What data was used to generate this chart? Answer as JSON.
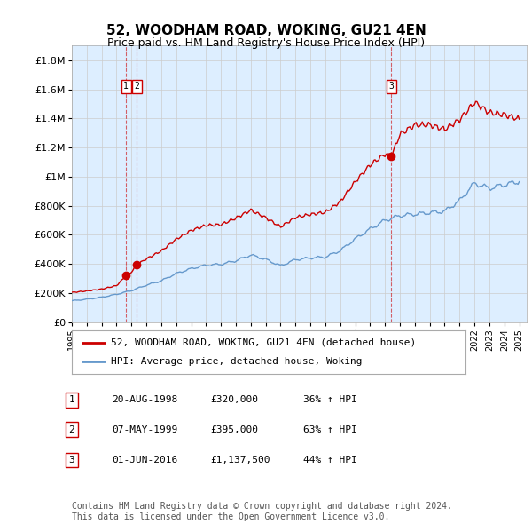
{
  "title": "52, WOODHAM ROAD, WOKING, GU21 4EN",
  "subtitle": "Price paid vs. HM Land Registry's House Price Index (HPI)",
  "ylabel_ticks": [
    "£0",
    "£200K",
    "£400K",
    "£600K",
    "£800K",
    "£1M",
    "£1.2M",
    "£1.4M",
    "£1.6M",
    "£1.8M"
  ],
  "ytick_values": [
    0,
    200000,
    400000,
    600000,
    800000,
    1000000,
    1200000,
    1400000,
    1600000,
    1800000
  ],
  "ylim": [
    0,
    1900000
  ],
  "xmin": 1995,
  "xmax": 2025.5,
  "xticks": [
    1995,
    1996,
    1997,
    1998,
    1999,
    2000,
    2001,
    2002,
    2003,
    2004,
    2005,
    2006,
    2007,
    2008,
    2009,
    2010,
    2011,
    2012,
    2013,
    2014,
    2015,
    2016,
    2017,
    2018,
    2019,
    2020,
    2021,
    2022,
    2023,
    2024,
    2025
  ],
  "sale1_x": 1998.64,
  "sale1_y": 320000,
  "sale1_label": "1",
  "sale1_date": "20-AUG-1998",
  "sale1_price": "£320,000",
  "sale1_hpi": "36% ↑ HPI",
  "sale2_x": 1999.36,
  "sale2_y": 395000,
  "sale2_label": "2",
  "sale2_date": "07-MAY-1999",
  "sale2_price": "£395,000",
  "sale2_hpi": "63% ↑ HPI",
  "sale3_x": 2016.42,
  "sale3_y": 1137500,
  "sale3_label": "3",
  "sale3_date": "01-JUN-2016",
  "sale3_price": "£1,137,500",
  "sale3_hpi": "44% ↑ HPI",
  "red_line_color": "#cc0000",
  "blue_line_color": "#6699cc",
  "background_color": "#ddeeff",
  "grid_color": "#cccccc",
  "legend_label_red": "52, WOODHAM ROAD, WOKING, GU21 4EN (detached house)",
  "legend_label_blue": "HPI: Average price, detached house, Woking",
  "footer": "Contains HM Land Registry data © Crown copyright and database right 2024.\nThis data is licensed under the Open Government Licence v3.0.",
  "marker_color": "#cc0000",
  "marker_size": 6
}
